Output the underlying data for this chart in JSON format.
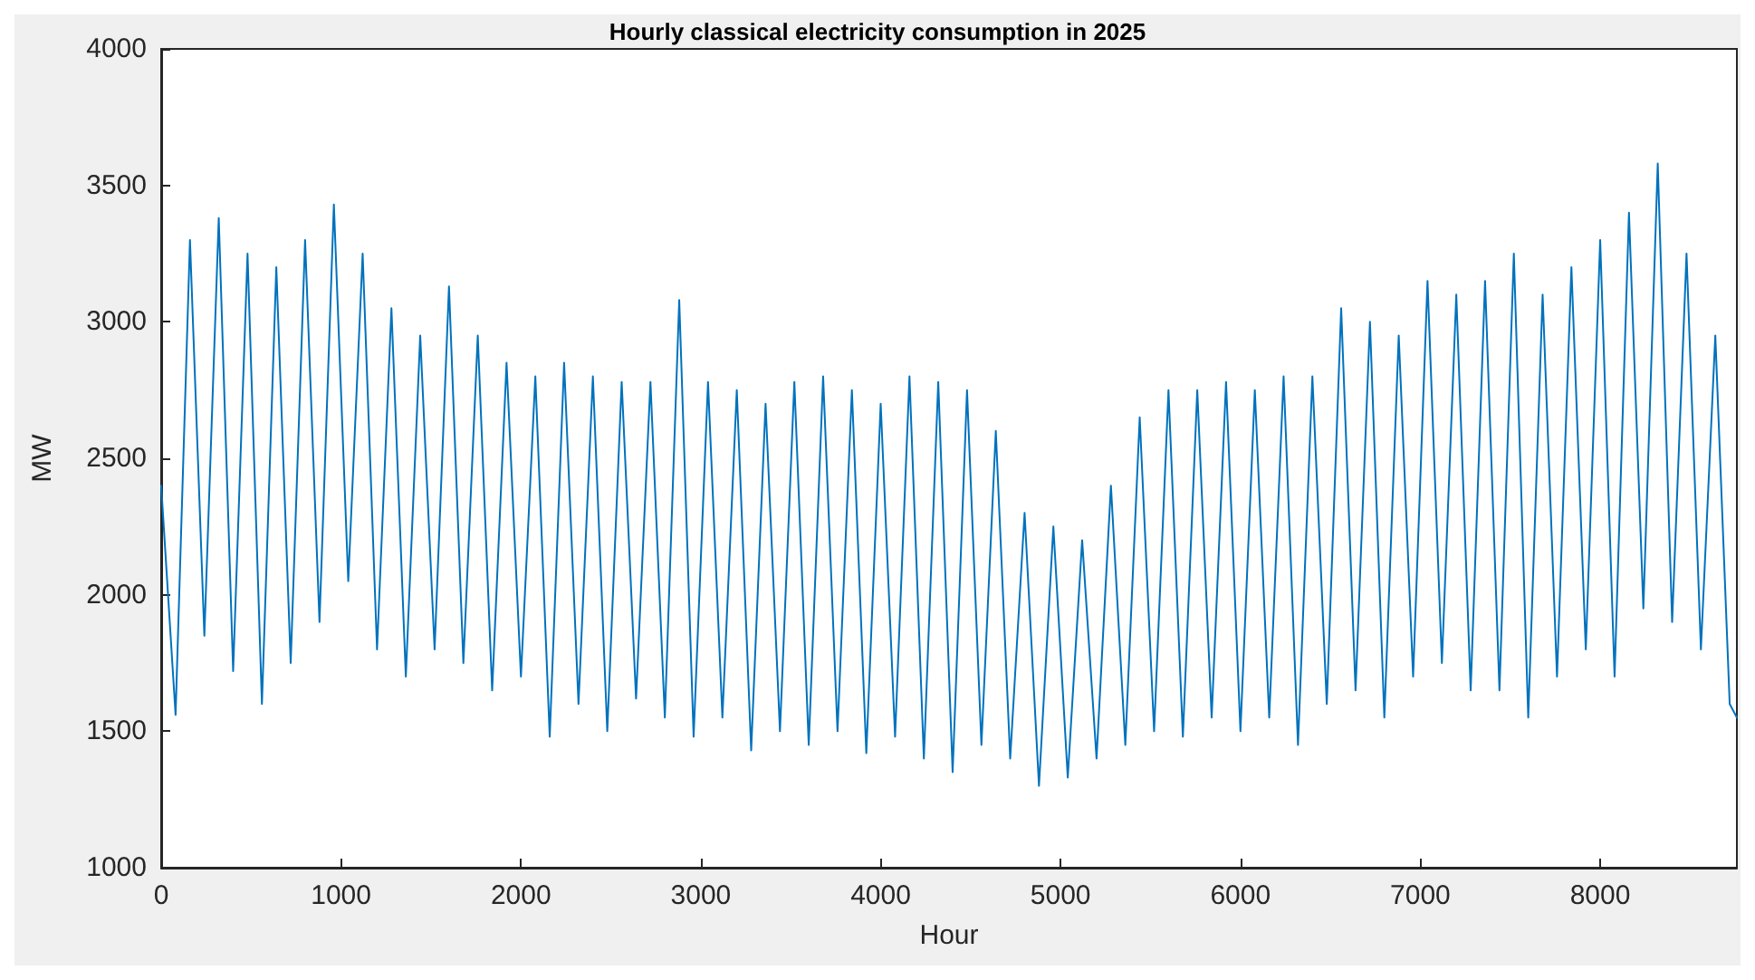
{
  "chart_data": {
    "type": "line",
    "title": "Hourly classical electricity consumption in 2025",
    "xlabel": "Hour",
    "ylabel": "MW",
    "xlim": [
      0,
      8760
    ],
    "xticks": [
      0,
      1000,
      2000,
      3000,
      4000,
      5000,
      6000,
      7000,
      8000
    ],
    "ylim": [
      1000,
      4000
    ],
    "yticks": [
      1000,
      1500,
      2000,
      2500,
      3000,
      3500,
      4000
    ],
    "grid": false,
    "marker": "none",
    "line_style": "solid",
    "x": [
      0,
      80,
      160,
      240,
      320,
      400,
      480,
      560,
      640,
      720,
      800,
      880,
      960,
      1040,
      1120,
      1200,
      1280,
      1360,
      1440,
      1520,
      1600,
      1680,
      1760,
      1840,
      1920,
      2000,
      2080,
      2160,
      2240,
      2320,
      2400,
      2480,
      2560,
      2640,
      2720,
      2800,
      2880,
      2960,
      3040,
      3120,
      3200,
      3280,
      3360,
      3440,
      3520,
      3600,
      3680,
      3760,
      3840,
      3920,
      4000,
      4080,
      4160,
      4240,
      4320,
      4400,
      4480,
      4560,
      4640,
      4720,
      4800,
      4880,
      4960,
      5040,
      5120,
      5200,
      5280,
      5360,
      5440,
      5520,
      5600,
      5680,
      5760,
      5840,
      5920,
      6000,
      6080,
      6160,
      6240,
      6320,
      6400,
      6480,
      6560,
      6640,
      6720,
      6800,
      6880,
      6960,
      7040,
      7120,
      7200,
      7280,
      7360,
      7440,
      7520,
      7600,
      7680,
      7760,
      7840,
      7920,
      8000,
      8080,
      8160,
      8240,
      8320,
      8400,
      8480,
      8560,
      8640,
      8720,
      8760
    ],
    "series": [
      {
        "color": "#0072bd",
        "values": [
          2400,
          1560,
          3300,
          1850,
          3380,
          1720,
          3250,
          1600,
          3200,
          1750,
          3300,
          1900,
          3430,
          2050,
          3250,
          1800,
          3050,
          1700,
          2950,
          1800,
          3130,
          1750,
          2950,
          1650,
          2850,
          1700,
          2800,
          1480,
          2850,
          1600,
          2800,
          1500,
          2780,
          1620,
          2780,
          1550,
          3080,
          1480,
          2780,
          1550,
          2750,
          1430,
          2700,
          1500,
          2780,
          1450,
          2800,
          1500,
          2750,
          1420,
          2700,
          1480,
          2800,
          1400,
          2780,
          1350,
          2750,
          1450,
          2600,
          1400,
          2300,
          1300,
          2250,
          1330,
          2200,
          1400,
          2400,
          1450,
          2650,
          1500,
          2750,
          1480,
          2750,
          1550,
          2780,
          1500,
          2750,
          1550,
          2800,
          1450,
          2800,
          1600,
          3050,
          1650,
          3000,
          1550,
          2950,
          1700,
          3150,
          1750,
          3100,
          1650,
          3150,
          1650,
          3250,
          1550,
          3100,
          1700,
          3200,
          1800,
          3300,
          1700,
          3400,
          1950,
          3580,
          1900,
          3250,
          1800,
          2950,
          1600,
          1550
        ]
      }
    ]
  }
}
